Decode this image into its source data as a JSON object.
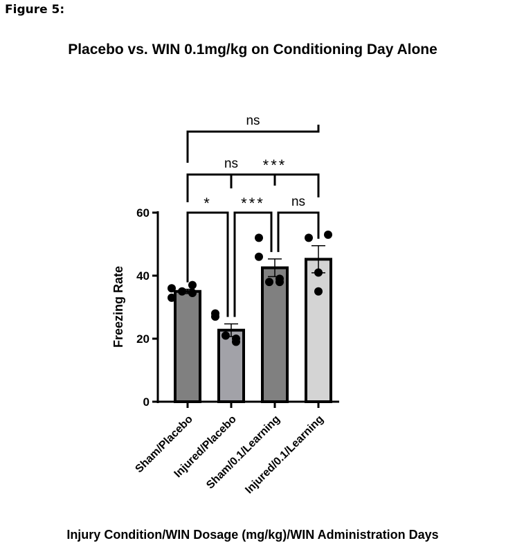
{
  "figure_label": "Figure 5:",
  "chart_data": {
    "type": "bar",
    "title": "Placebo vs. WIN 0.1mg/kg on Conditioning Day Alone",
    "xlabel": "Injury Condition/WIN Dosage (mg/kg)/WIN Administration Days",
    "ylabel": "Freezing Rate",
    "ylim": [
      0,
      60
    ],
    "yticks": [
      0,
      20,
      40,
      60
    ],
    "grid": false,
    "categories": [
      "Sham/Placebo",
      "Injured/Placebo",
      "Sham/0.1/Learning",
      "Injured/0.1/Learning"
    ],
    "values": [
      35,
      22.7,
      42.5,
      45.2
    ],
    "sem": [
      0.7,
      2.0,
      2.8,
      4.3
    ],
    "points": [
      [
        36,
        33,
        35,
        37,
        34.5
      ],
      [
        28,
        27,
        21,
        19,
        20
      ],
      [
        52,
        46,
        38,
        39,
        38
      ],
      [
        52,
        53,
        41,
        35
      ]
    ],
    "colors": [
      "#808080",
      "#a2a2a8",
      "#808080",
      "#d4d4d4"
    ],
    "comparisons": [
      {
        "from": 0,
        "to": 1,
        "label": "*"
      },
      {
        "from": 1,
        "to": 2,
        "label": "***"
      },
      {
        "from": 2,
        "to": 3,
        "label": "ns"
      },
      {
        "from": 0,
        "to": 2,
        "label": "ns"
      },
      {
        "from": 1,
        "to": 3,
        "label": "***"
      },
      {
        "from": 0,
        "to": 3,
        "label": "ns"
      }
    ]
  }
}
